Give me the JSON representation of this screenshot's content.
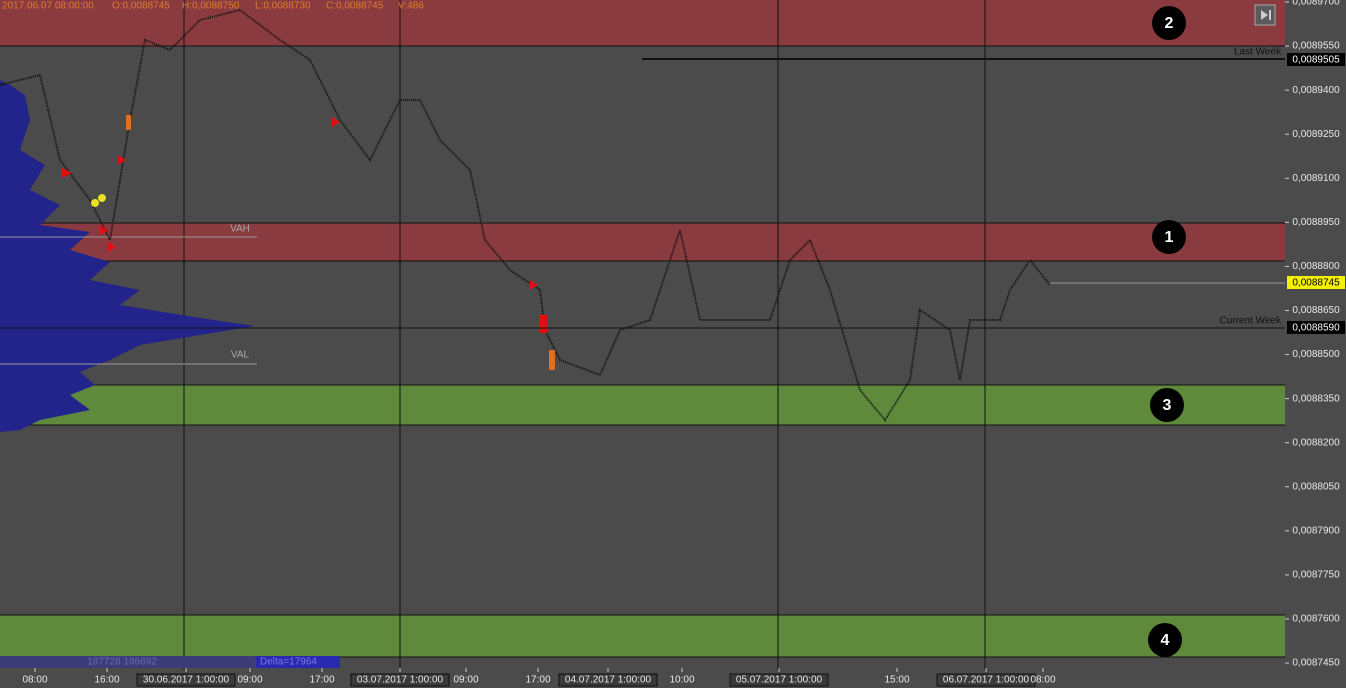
{
  "header": {
    "fields": [
      "2017.06.07 08:00:00",
      "O:0,0088745",
      "H:0,0088750",
      "L:0,0088730",
      "C:0,0088745",
      "V:486"
    ]
  },
  "price_axis": {
    "labels": [
      "0,0089700",
      "0,0089550",
      "0,0089400",
      "0,0089250",
      "0,0089100",
      "0,0088950",
      "0,0088800",
      "0,0088650",
      "0,0088500",
      "0,0088350",
      "0,0088200",
      "0,0088050",
      "0,0087900",
      "0,0087750",
      "0,0087600",
      "0,0087450"
    ]
  },
  "time_axis": {
    "labels": [
      "08:00",
      "16:00",
      "30.06.2017 1:00:00",
      "09:00",
      "17:00",
      "03.07.2017 1:00:00",
      "09:00",
      "17:00",
      "04.07.2017 1:00:00",
      "10:00",
      "05.07.2017 1:00:00",
      "15:00",
      "06.07.2017 1:00:00",
      "08:00"
    ]
  },
  "zones": [
    {
      "number": "2"
    },
    {
      "number": "1"
    },
    {
      "number": "3"
    },
    {
      "number": "4"
    }
  ],
  "levels": {
    "vah": "VAH",
    "val": "VAL",
    "last_week": {
      "label": "Last Week",
      "price": "0,0089505"
    },
    "current_week": {
      "label": "Current Week",
      "price": "0,0088590"
    },
    "current_price": "0,0088745"
  },
  "footer": {
    "volumes": "187728 186692",
    "delta": "Delta=17964"
  }
}
